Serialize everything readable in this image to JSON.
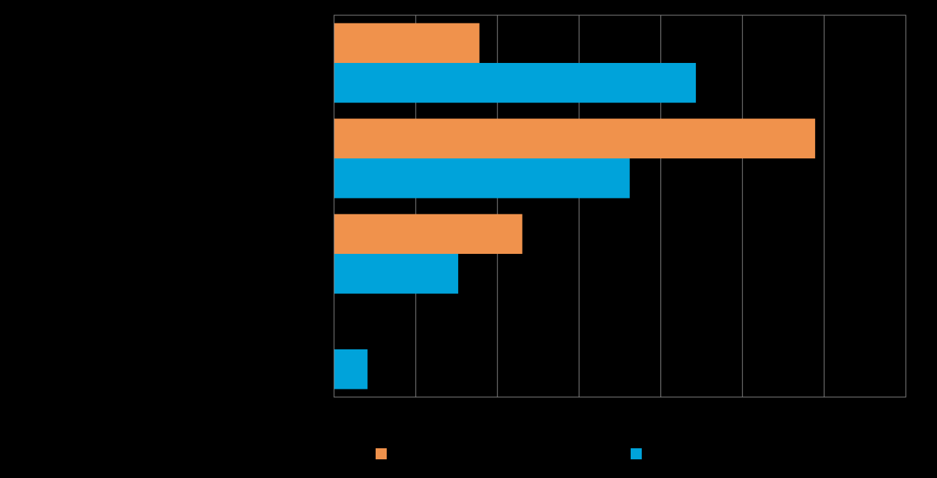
{
  "chart_data": {
    "type": "bar",
    "orientation": "horizontal",
    "categories": [
      "",
      "",
      "",
      ""
    ],
    "series": [
      {
        "name": "",
        "color": "#f0924c",
        "values": [
          3.56,
          11.78,
          4.61,
          0
        ]
      },
      {
        "name": "",
        "color": "#00a3da",
        "values": [
          8.86,
          7.24,
          3.04,
          0.82
        ]
      }
    ],
    "title": "",
    "xlabel": "",
    "ylabel": "",
    "xlim": [
      0,
      14
    ],
    "grid": true,
    "legend": "bottom",
    "colors": {
      "background": "#000000",
      "grid": "#888888"
    }
  }
}
